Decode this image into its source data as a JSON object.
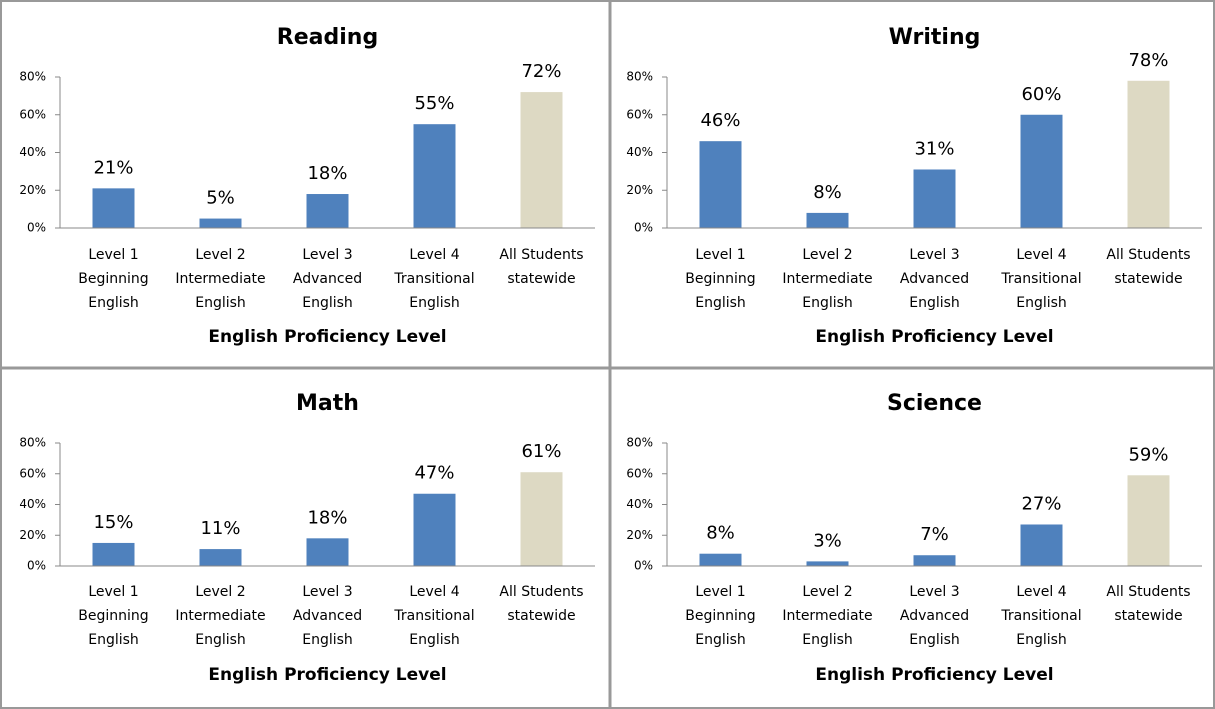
{
  "chart_data": [
    {
      "type": "bar",
      "title": "Reading",
      "x_label": "English Proficiency Level",
      "categories": [
        "Level 1\nBeginning\nEnglish",
        "Level 2\nIntermediate\nEnglish",
        "Level 3\nAdvanced\nEnglish",
        "Level 4\nTransitional\nEnglish",
        "All Students\nstatewide"
      ],
      "values": [
        21,
        5,
        18,
        55,
        72
      ],
      "value_labels": [
        "21%",
        "5%",
        "18%",
        "55%",
        "72%"
      ],
      "colors": [
        "#4f81bd",
        "#4f81bd",
        "#4f81bd",
        "#4f81bd",
        "#ddd9c3"
      ],
      "ylim": [
        0,
        80
      ],
      "yticks": [
        {
          "value": 0,
          "label": "0%"
        },
        {
          "value": 20,
          "label": "20%"
        },
        {
          "value": 40,
          "label": "40%"
        },
        {
          "value": 60,
          "label": "60%"
        },
        {
          "value": 80,
          "label": "80%"
        }
      ]
    },
    {
      "type": "bar",
      "title": "Writing",
      "x_label": "English Proficiency Level",
      "categories": [
        "Level 1\nBeginning\nEnglish",
        "Level 2\nIntermediate\nEnglish",
        "Level 3\nAdvanced\nEnglish",
        "Level 4\nTransitional\nEnglish",
        "All Students\nstatewide"
      ],
      "values": [
        46,
        8,
        31,
        60,
        78
      ],
      "value_labels": [
        "46%",
        "8%",
        "31%",
        "60%",
        "78%"
      ],
      "colors": [
        "#4f81bd",
        "#4f81bd",
        "#4f81bd",
        "#4f81bd",
        "#ddd9c3"
      ],
      "ylim": [
        0,
        80
      ],
      "yticks": [
        {
          "value": 0,
          "label": "0%"
        },
        {
          "value": 20,
          "label": "20%"
        },
        {
          "value": 40,
          "label": "40%"
        },
        {
          "value": 60,
          "label": "60%"
        },
        {
          "value": 80,
          "label": "80%"
        }
      ]
    },
    {
      "type": "bar",
      "title": "Math",
      "x_label": "English Proficiency Level",
      "categories": [
        "Level 1\nBeginning\nEnglish",
        "Level 2\nIntermediate\nEnglish",
        "Level 3\nAdvanced\nEnglish",
        "Level 4\nTransitional\nEnglish",
        "All Students\nstatewide"
      ],
      "values": [
        15,
        11,
        18,
        47,
        61
      ],
      "value_labels": [
        "15%",
        "11%",
        "18%",
        "47%",
        "61%"
      ],
      "colors": [
        "#4f81bd",
        "#4f81bd",
        "#4f81bd",
        "#4f81bd",
        "#ddd9c3"
      ],
      "ylim": [
        0,
        80
      ],
      "yticks": [
        {
          "value": 0,
          "label": "0%"
        },
        {
          "value": 20,
          "label": "20%"
        },
        {
          "value": 40,
          "label": "40%"
        },
        {
          "value": 60,
          "label": "60%"
        },
        {
          "value": 80,
          "label": "80%"
        }
      ]
    },
    {
      "type": "bar",
      "title": "Science",
      "x_label": "English Proficiency Level",
      "categories": [
        "Level 1\nBeginning\nEnglish",
        "Level 2\nIntermediate\nEnglish",
        "Level 3\nAdvanced\nEnglish",
        "Level 4\nTransitional\nEnglish",
        "All Students\nstatewide"
      ],
      "values": [
        8,
        3,
        7,
        27,
        59
      ],
      "value_labels": [
        "8%",
        "3%",
        "7%",
        "27%",
        "59%"
      ],
      "colors": [
        "#4f81bd",
        "#4f81bd",
        "#4f81bd",
        "#4f81bd",
        "#ddd9c3"
      ],
      "ylim": [
        0,
        80
      ],
      "yticks": [
        {
          "value": 0,
          "label": "0%"
        },
        {
          "value": 20,
          "label": "20%"
        },
        {
          "value": 40,
          "label": "40%"
        },
        {
          "value": 60,
          "label": "60%"
        },
        {
          "value": 80,
          "label": "80%"
        }
      ]
    }
  ]
}
